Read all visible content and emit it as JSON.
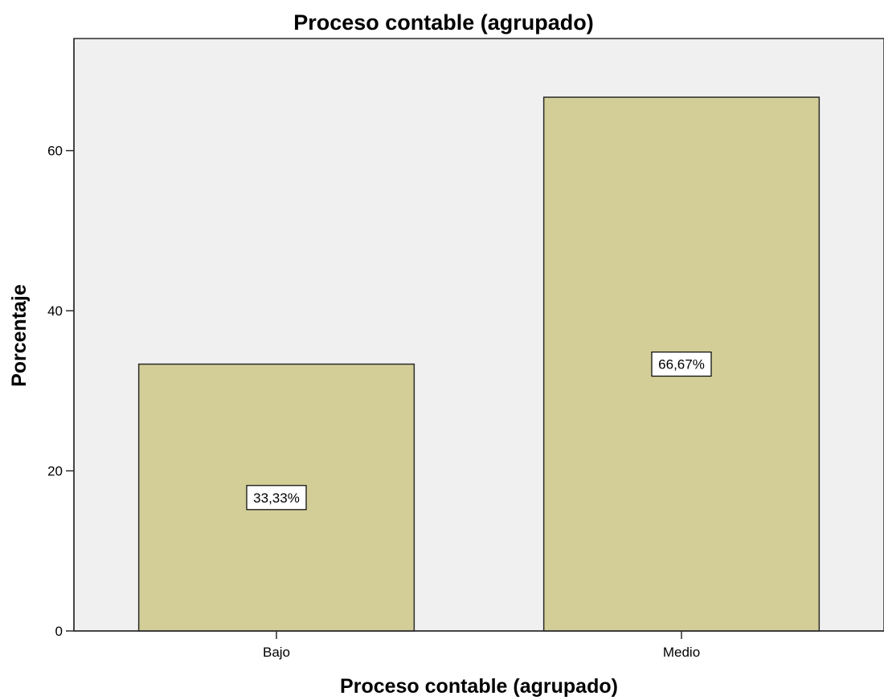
{
  "chart_data": {
    "type": "bar",
    "title": "Proceso contable (agrupado)",
    "xlabel": "Proceso contable (agrupado)",
    "ylabel": "Porcentaje",
    "categories": [
      "Bajo",
      "Medio"
    ],
    "values": [
      33.33,
      66.67
    ],
    "data_labels": [
      "33,33%",
      "66,67%"
    ],
    "ylim": [
      0,
      74
    ],
    "yticks": [
      0,
      20,
      40,
      60
    ],
    "grid": false,
    "legend": "none",
    "colors": {
      "bar_fill": "#d3ce98",
      "bar_stroke": "#2b2b2b",
      "plot_background": "#f0f0f0",
      "label_box": "#ffffff"
    }
  }
}
